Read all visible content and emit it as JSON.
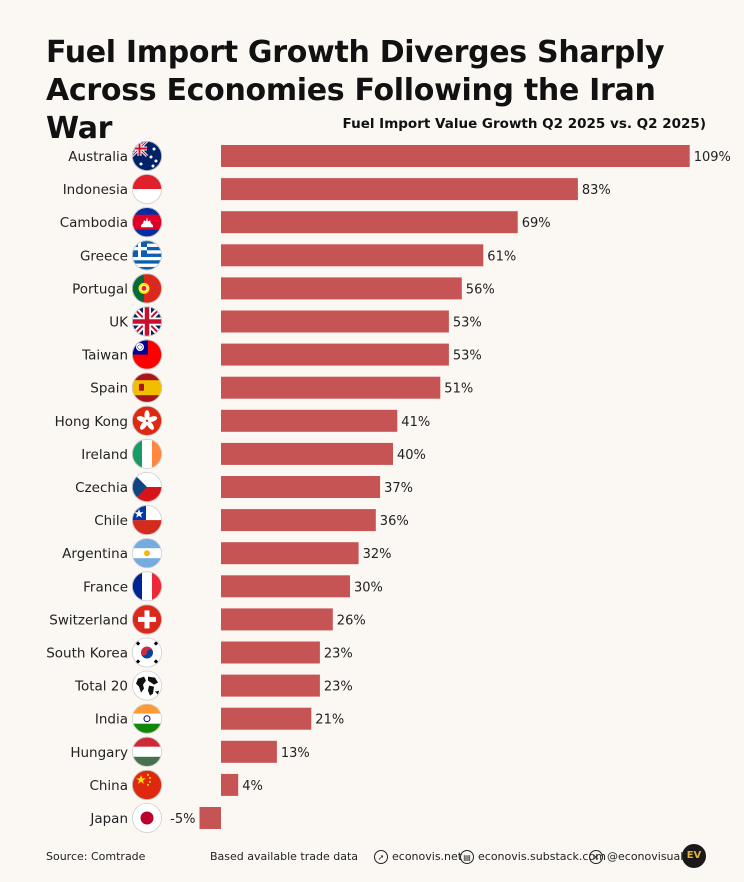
{
  "title": "Fuel Import Growth Diverges Sharply Across Economies Following the Iran War",
  "subtitle": "Fuel Import Value Growth Q2 2025 vs. Q2 2025)",
  "colors": {
    "bar": "#c65454",
    "background": "#fbf8f3"
  },
  "chart_data": {
    "type": "bar",
    "orientation": "horizontal",
    "unit": "%",
    "categories": [
      "Australia",
      "Indonesia",
      "Cambodia",
      "Greece",
      "Portugal",
      "UK",
      "Taiwan",
      "Spain",
      "Hong Kong",
      "Ireland",
      "Czechia",
      "Chile",
      "Argentina",
      "France",
      "Switzerland",
      "South Korea",
      "Total 20",
      "India",
      "Hungary",
      "China",
      "Japan"
    ],
    "values": [
      109,
      83,
      69,
      61,
      56,
      53,
      53,
      51,
      41,
      40,
      37,
      36,
      32,
      30,
      26,
      23,
      23,
      21,
      13,
      4,
      -5
    ],
    "labels": [
      "109%",
      "83%",
      "69%",
      "61%",
      "56%",
      "53%",
      "53%",
      "51%",
      "41%",
      "40%",
      "37%",
      "36%",
      "32%",
      "30%",
      "26%",
      "23%",
      "23%",
      "21%",
      "13%",
      "4%",
      "-5%"
    ],
    "icons": [
      "australia-flag-icon",
      "indonesia-flag-icon",
      "cambodia-flag-icon",
      "greece-flag-icon",
      "portugal-flag-icon",
      "uk-flag-icon",
      "taiwan-flag-icon",
      "spain-flag-icon",
      "hong-kong-flag-icon",
      "ireland-flag-icon",
      "czechia-flag-icon",
      "chile-flag-icon",
      "argentina-flag-icon",
      "france-flag-icon",
      "switzerland-flag-icon",
      "south-korea-flag-icon",
      "globe-icon",
      "india-flag-icon",
      "hungary-flag-icon",
      "china-flag-icon",
      "japan-flag-icon"
    ],
    "xlim": [
      -5,
      109
    ],
    "grid": false,
    "legend": "none"
  },
  "footer": {
    "source": "Source: Comtrade",
    "note": "Based available trade data",
    "website": "econovis.net",
    "substack": "econovis.substack.com",
    "x_handle": "@econovisuals",
    "logo": "EV"
  }
}
